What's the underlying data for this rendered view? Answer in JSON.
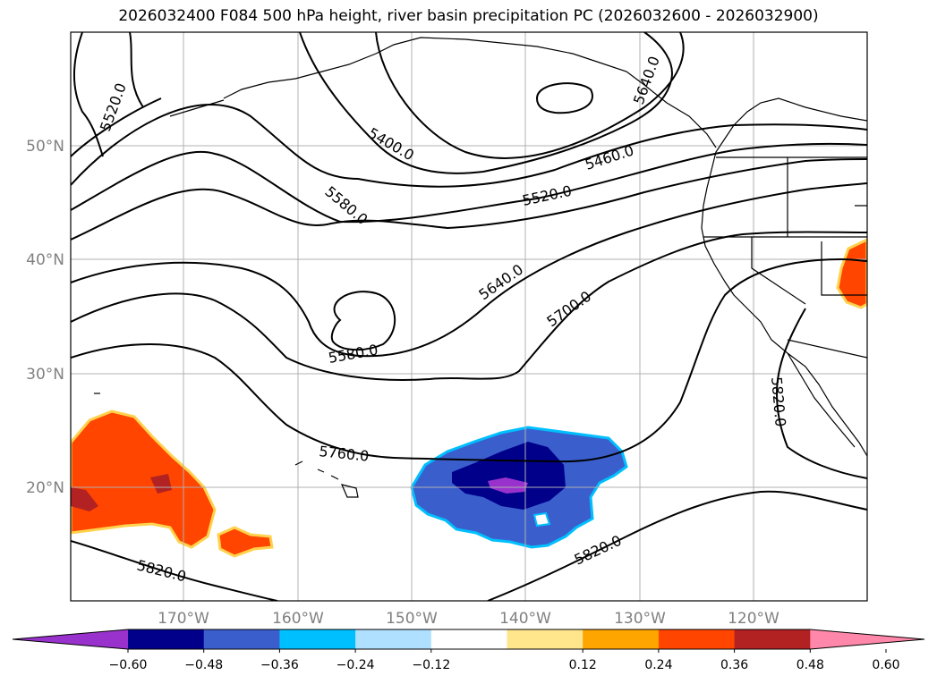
{
  "title": "2026032400 F084 500 hPa height, river basin precipitation PC (2026032600 - 2026032900)",
  "map": {
    "lat_ticks": [
      "50°N",
      "40°N",
      "30°N",
      "20°N"
    ],
    "lon_ticks": [
      "170°W",
      "160°W",
      "150°W",
      "140°W",
      "130°W",
      "120°W"
    ],
    "contour_labels": [
      "5520.0",
      "5400.0",
      "5460.0",
      "5520.0",
      "5580.0",
      "5640.0",
      "5700.0",
      "5580.0",
      "5760.0",
      "5820.0",
      "5820.0",
      "5820.0",
      "5640.0"
    ],
    "colors": {
      "contour": "#000000",
      "grid": "#b0b0b0",
      "coast": "#000000",
      "orange": "#ff4500",
      "yellow": "#ffe680",
      "dark_navy": "#00008b",
      "blue": "#3a5fcd",
      "cyan": "#00bfff",
      "purple": "#9932cc",
      "dark_red": "#b22222"
    }
  },
  "colorbar": {
    "ticks": [
      "−0.60",
      "−0.48",
      "−0.36",
      "−0.24",
      "−0.12",
      "0.12",
      "0.24",
      "0.36",
      "0.48",
      "0.60"
    ],
    "colors": [
      "#9932cc",
      "#00008b",
      "#3a5fcd",
      "#00bfff",
      "#b0e0ff",
      "#ffffff",
      "#ffe68c",
      "#ffa500",
      "#ff4500",
      "#b22222",
      "#ff88aa"
    ]
  }
}
